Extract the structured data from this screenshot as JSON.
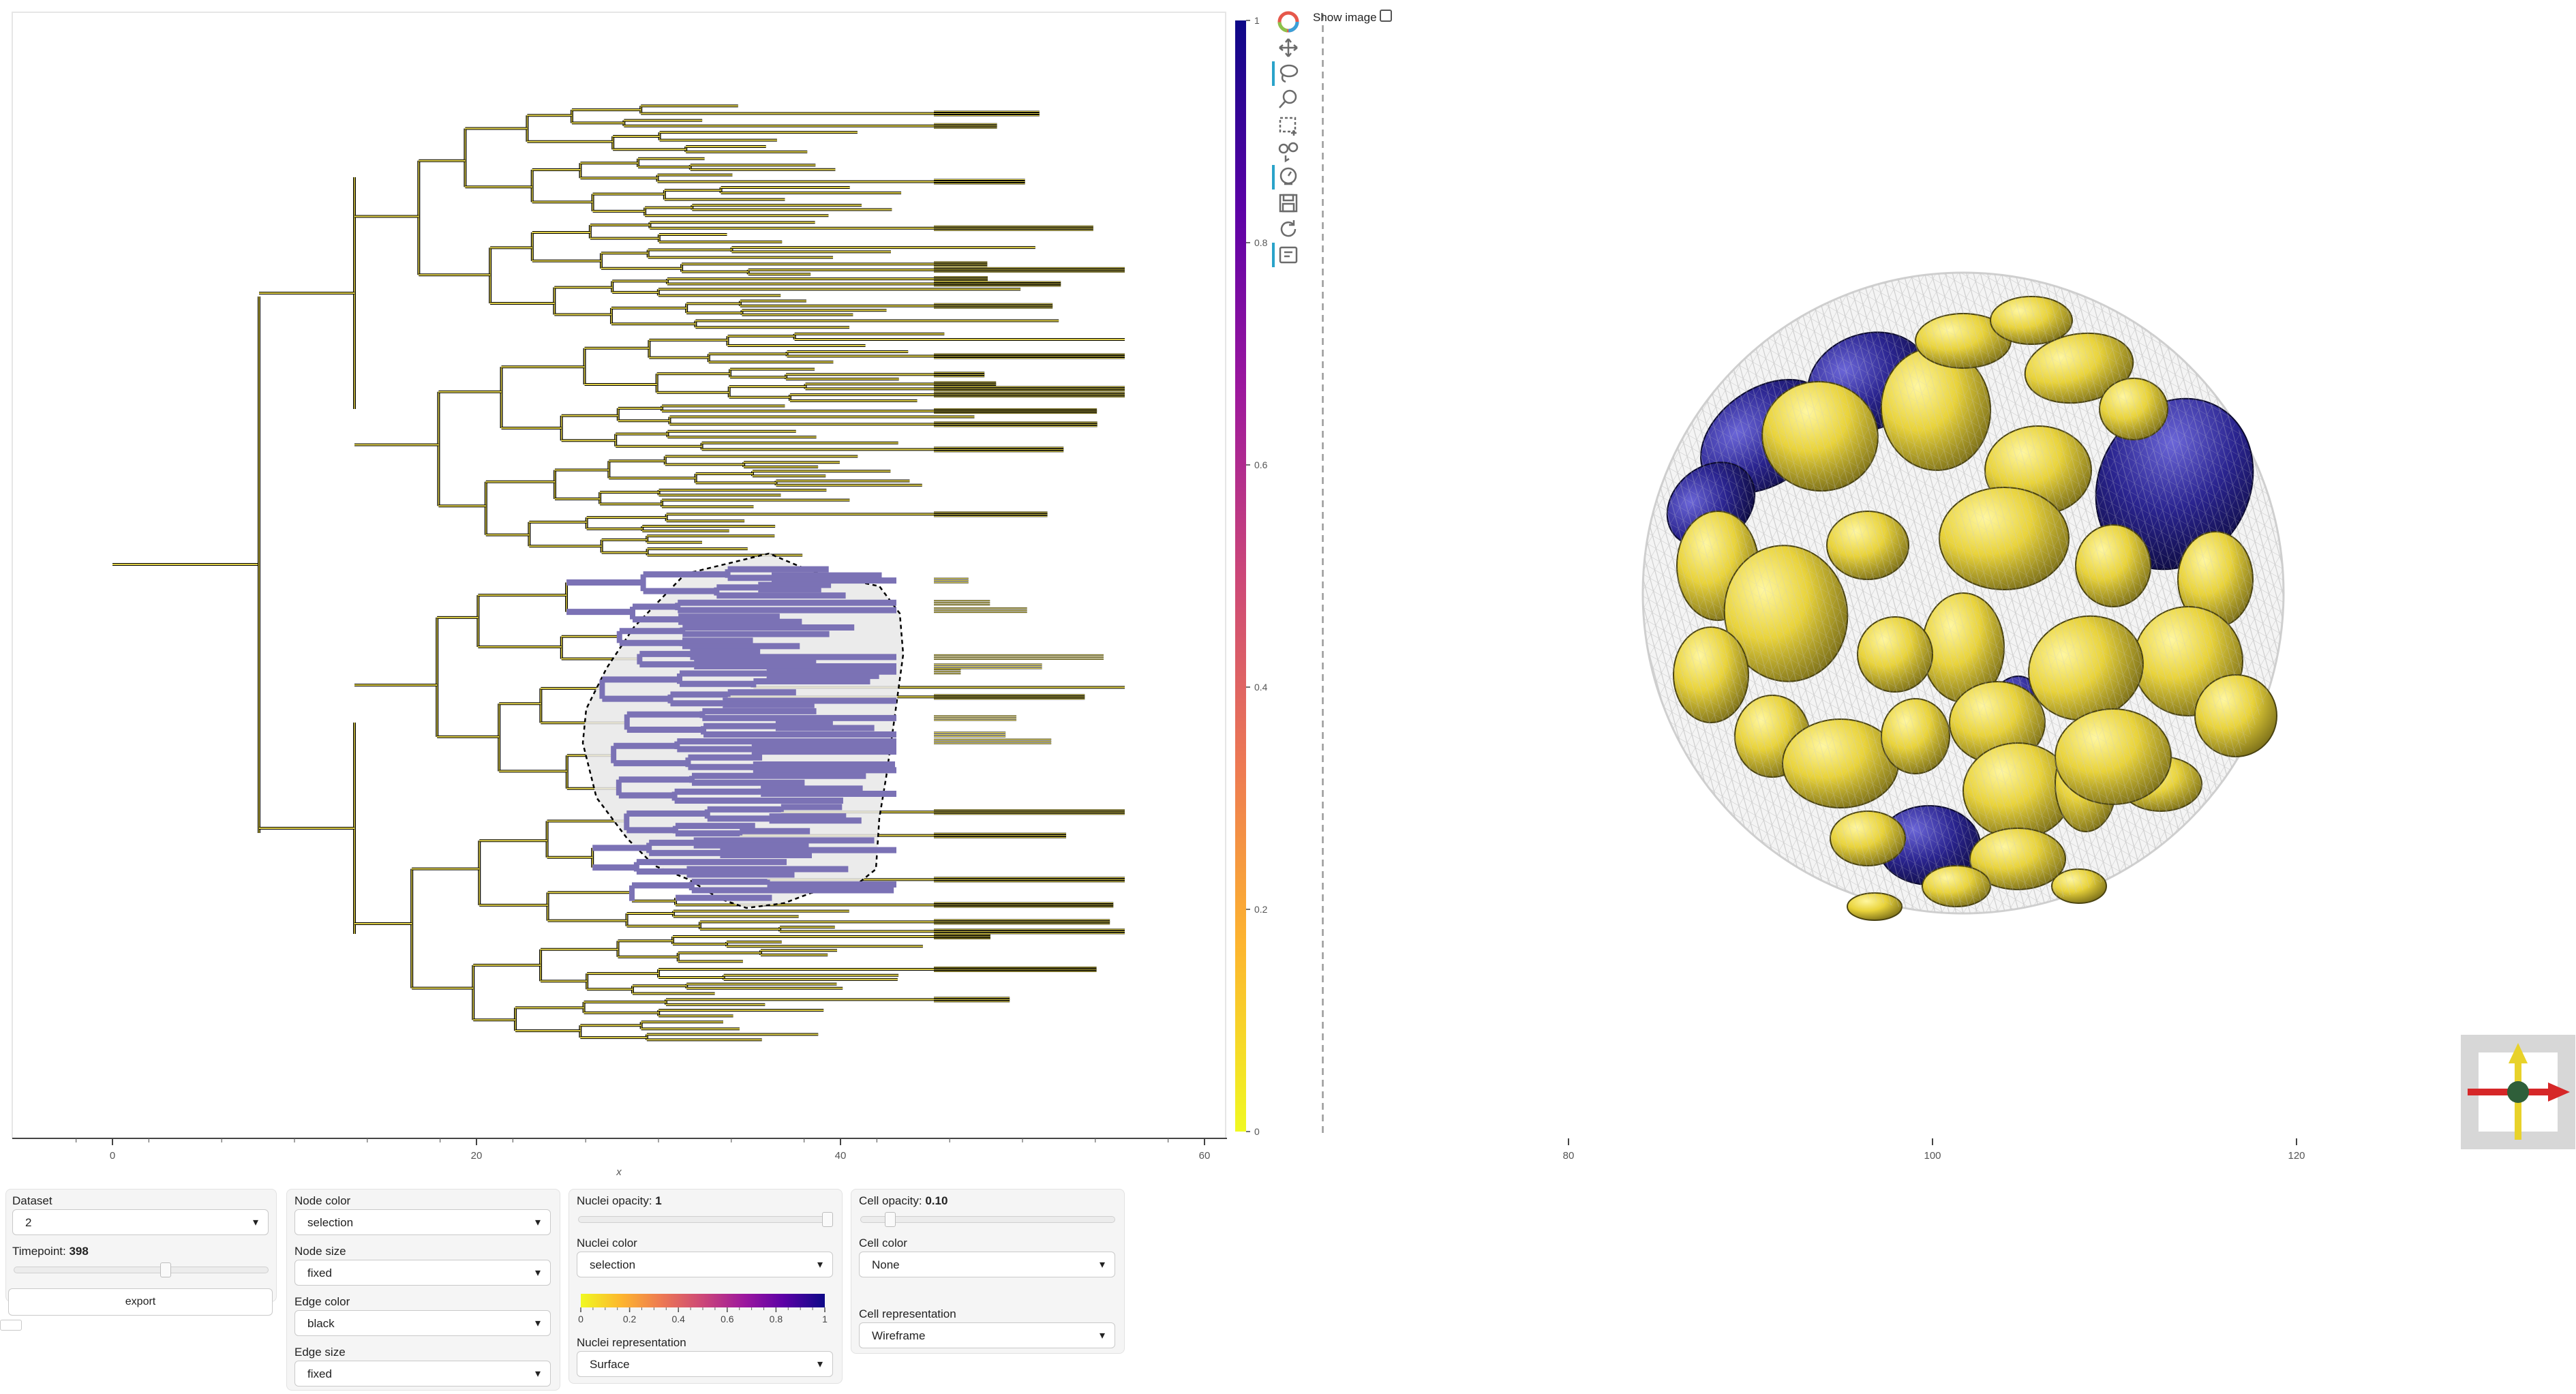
{
  "plot": {
    "x_axis_label": "x",
    "x_ticks": [
      "0",
      "20",
      "40",
      "60",
      "80",
      "100",
      "120"
    ],
    "crosshair_x": 66.5
  },
  "colorbar": {
    "ticks": [
      "0",
      "0.2",
      "0.4",
      "0.6",
      "0.8",
      "1"
    ],
    "colors": [
      "#f0f921",
      "#fdb42f",
      "#ed7953",
      "#cc4778",
      "#9c179e",
      "#5c01a6",
      "#0d0887"
    ]
  },
  "toolbar": {
    "icons": [
      "bokeh-logo-icon",
      "pan-icon",
      "lasso-select-icon",
      "wheel-zoom-icon",
      "box-select-icon",
      "tap-icon",
      "hover-icon",
      "save-icon",
      "reset-icon",
      "help-icon"
    ]
  },
  "top_right": {
    "show_image_label": "Show image",
    "show_image_checked": false
  },
  "tree": {
    "edge_color": "#000000",
    "unselected_color": "#e2d24a",
    "selected_color": "#7b72b5"
  },
  "panels": {
    "dataset": {
      "label": "Dataset",
      "value": "2",
      "timepoint_label": "Timepoint:",
      "timepoint_value": "398",
      "timepoint_fraction": 0.6,
      "export_label": "export"
    },
    "node": {
      "node_color_label": "Node color",
      "node_color_value": "selection",
      "node_size_label": "Node size",
      "node_size_value": "fixed",
      "edge_color_label": "Edge color",
      "edge_color_value": "black",
      "edge_size_label": "Edge size",
      "edge_size_value": "fixed"
    },
    "nuclei": {
      "opacity_label": "Nuclei opacity:",
      "opacity_value": "1",
      "opacity_fraction": 1.0,
      "color_label": "Nuclei color",
      "color_value": "selection",
      "cbar_ticks": [
        "0",
        "0.2",
        "0.4",
        "0.6",
        "0.8",
        "1"
      ],
      "representation_label": "Nuclei representation",
      "representation_value": "Surface"
    },
    "cell": {
      "opacity_label": "Cell opacity:",
      "opacity_value": "0.10",
      "opacity_fraction": 0.1,
      "color_label": "Cell color",
      "color_value": "None",
      "representation_label": "Cell representation",
      "representation_value": "Wireframe"
    }
  },
  "orientation_widget": {
    "x_axis_color": "#d62728",
    "y_axis_color": "#e8d22a",
    "z_axis_color": "#2f5f3a"
  }
}
